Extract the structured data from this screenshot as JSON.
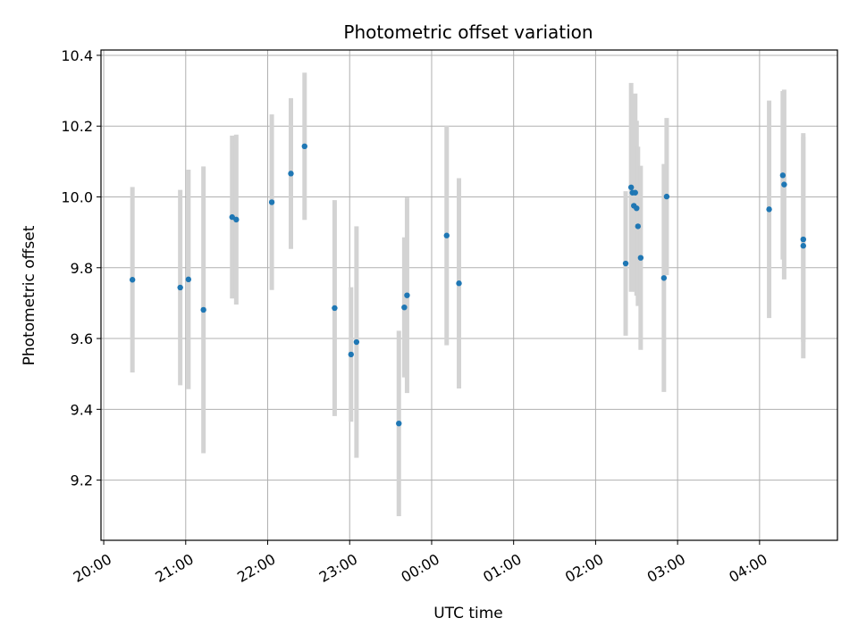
{
  "chart_data": {
    "type": "scatter",
    "title": "Photometric offset variation",
    "xlabel": "UTC time",
    "ylabel": "Photometric offset",
    "xlim": [
      "19:58",
      "04:57"
    ],
    "ylim": [
      9.03,
      10.415
    ],
    "x_is_time": true,
    "x_ticks": [
      "20:00",
      "21:00",
      "22:00",
      "23:00",
      "00:00",
      "01:00",
      "02:00",
      "03:00",
      "04:00"
    ],
    "y_ticks": [
      9.2,
      9.4,
      9.6,
      9.8,
      10.0,
      10.2,
      10.4
    ],
    "grid": true,
    "colors": {
      "point": "#1f77b4",
      "errorbar": "#d3d3d3",
      "grid": "#b0b0b0"
    },
    "points": [
      {
        "t": "20:21",
        "y": 9.766,
        "yerr": 0.262
      },
      {
        "t": "20:56",
        "y": 9.744,
        "yerr": 0.276
      },
      {
        "t": "21:02",
        "y": 9.767,
        "yerr": 0.31
      },
      {
        "t": "21:13",
        "y": 9.681,
        "yerr": 0.405
      },
      {
        "t": "21:34",
        "y": 9.943,
        "yerr": 0.23
      },
      {
        "t": "21:37",
        "y": 9.936,
        "yerr": 0.24
      },
      {
        "t": "22:03",
        "y": 9.985,
        "yerr": 0.248
      },
      {
        "t": "22:17",
        "y": 10.066,
        "yerr": 0.213
      },
      {
        "t": "22:27",
        "y": 10.143,
        "yerr": 0.208
      },
      {
        "t": "22:49",
        "y": 9.686,
        "yerr": 0.305
      },
      {
        "t": "23:01",
        "y": 9.555,
        "yerr": 0.19
      },
      {
        "t": "23:05",
        "y": 9.59,
        "yerr": 0.327
      },
      {
        "t": "23:36",
        "y": 9.36,
        "yerr": 0.262
      },
      {
        "t": "23:40",
        "y": 9.688,
        "yerr": 0.198
      },
      {
        "t": "23:42",
        "y": 9.722,
        "yerr": 0.276
      },
      {
        "t": "00:11",
        "y": 9.891,
        "yerr": 0.31
      },
      {
        "t": "00:20",
        "y": 9.756,
        "yerr": 0.297
      },
      {
        "t": "02:22",
        "y": 9.812,
        "yerr": 0.204
      },
      {
        "t": "02:26",
        "y": 10.027,
        "yerr": 0.295
      },
      {
        "t": "02:27",
        "y": 10.012,
        "yerr": 0.278
      },
      {
        "t": "02:28",
        "y": 9.975,
        "yerr": 0.23
      },
      {
        "t": "02:29",
        "y": 10.012,
        "yerr": 0.28
      },
      {
        "t": "02:30",
        "y": 9.968,
        "yerr": 0.247
      },
      {
        "t": "02:31",
        "y": 9.917,
        "yerr": 0.225
      },
      {
        "t": "02:33",
        "y": 9.828,
        "yerr": 0.26
      },
      {
        "t": "02:50",
        "y": 9.771,
        "yerr": 0.322
      },
      {
        "t": "02:52",
        "y": 10.001,
        "yerr": 0.222
      },
      {
        "t": "04:07",
        "y": 9.965,
        "yerr": 0.307
      },
      {
        "t": "04:17",
        "y": 10.061,
        "yerr": 0.238
      },
      {
        "t": "04:18",
        "y": 10.035,
        "yerr": 0.268
      },
      {
        "t": "04:32",
        "y": 9.88,
        "yerr": 0.29
      },
      {
        "t": "04:32",
        "y": 9.862,
        "yerr": 0.318
      }
    ]
  }
}
